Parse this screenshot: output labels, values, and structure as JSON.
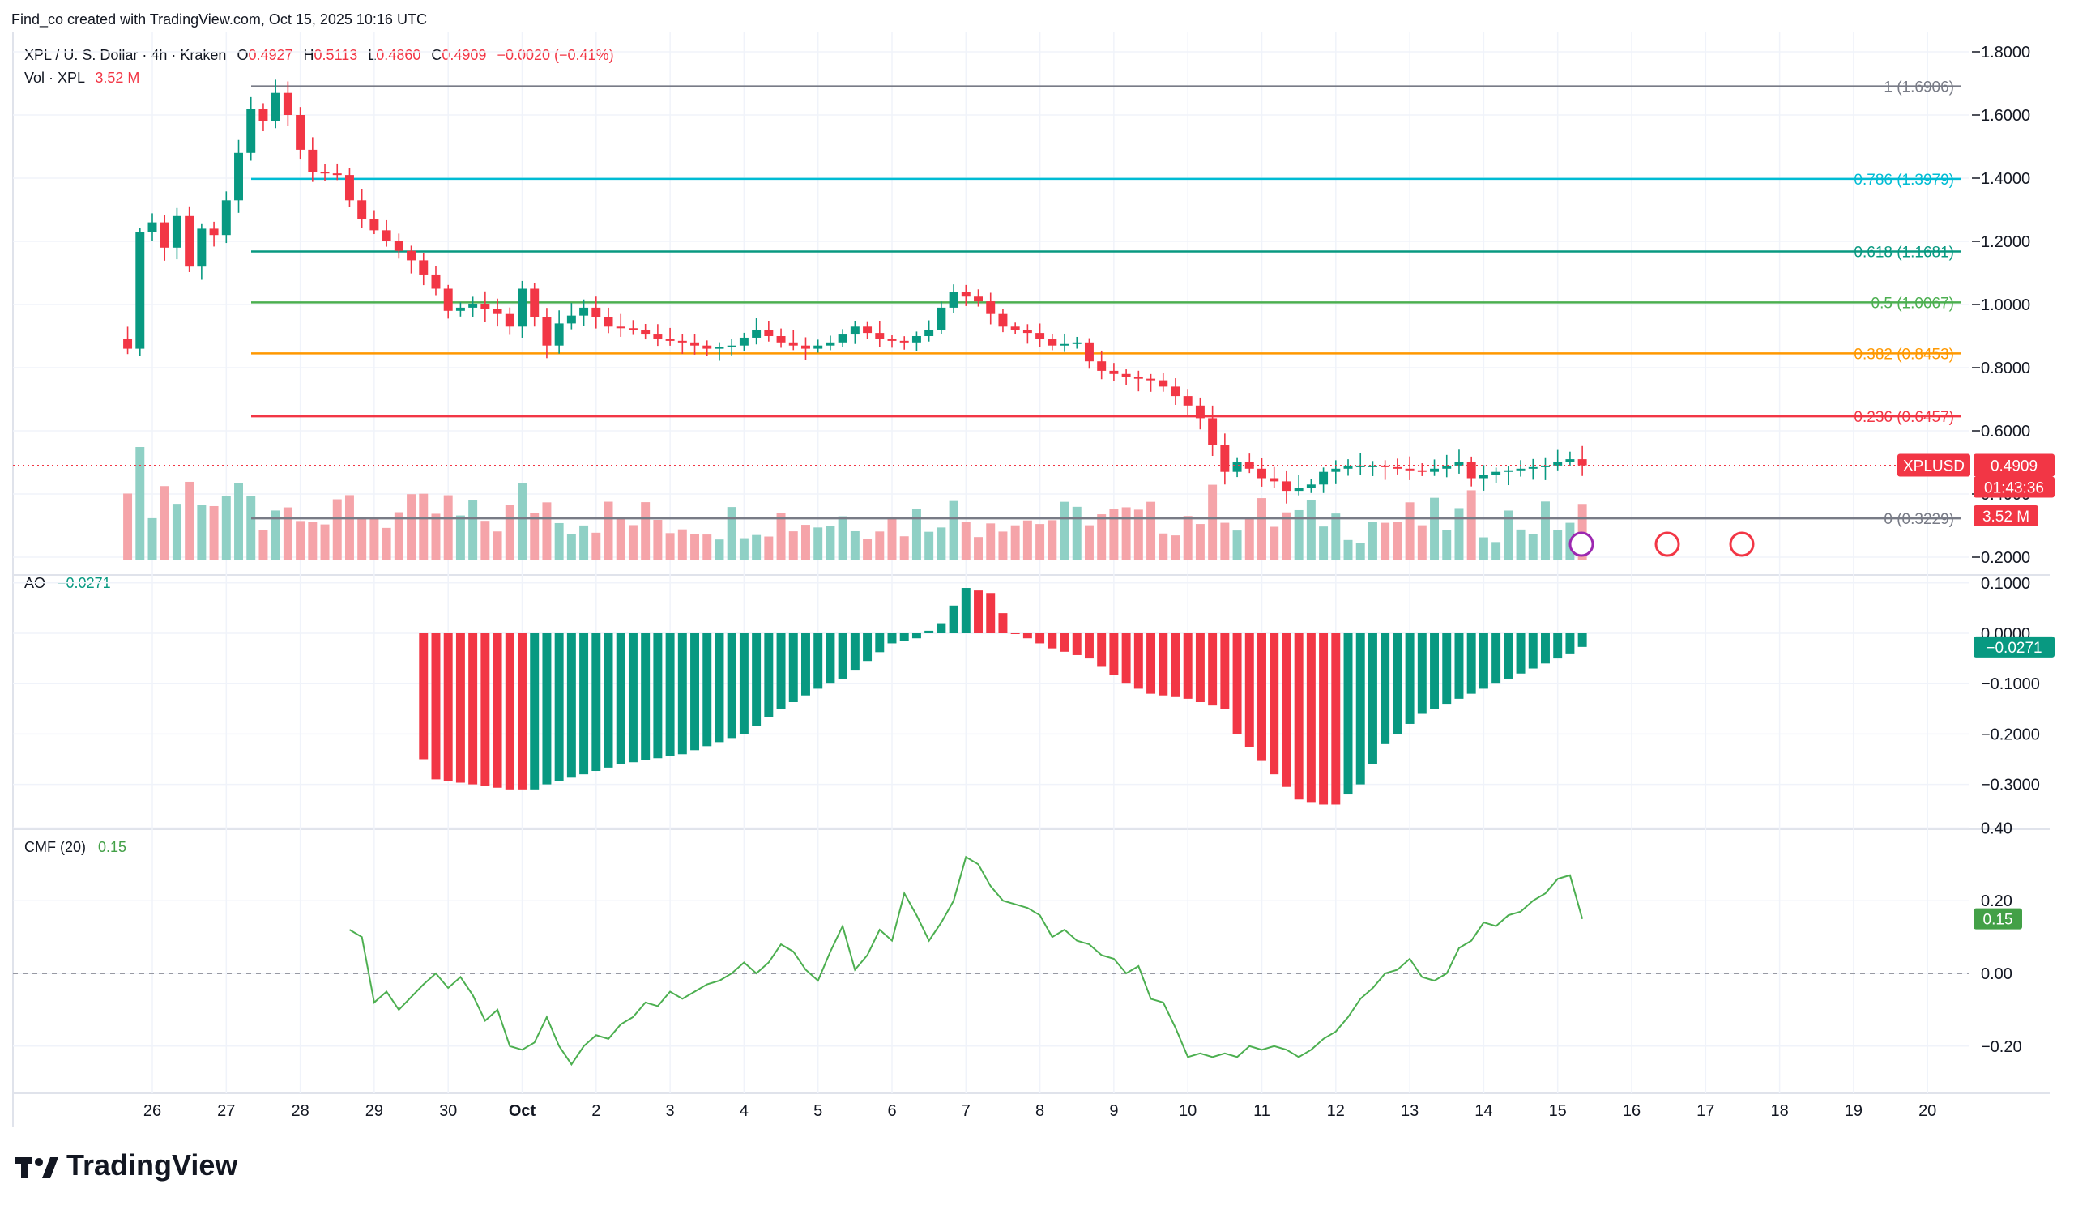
{
  "top_caption": "Find_co created with TradingView.com, Oct 15, 2025 10:16 UTC",
  "brand": "TradingView",
  "legend": {
    "symbol": "XPL / U. S. Dollar · 4h · Kraken",
    "o_label": "O",
    "o": "0.4927",
    "h_label": "H",
    "h": "0.5113",
    "l_label": "L",
    "l": "0.4860",
    "c_label": "C",
    "c": "0.4909",
    "change": "−0.0020 (−0.41%)",
    "vol_label": "Vol · XPL",
    "vol": "3.52 M"
  },
  "ao": {
    "label": "AO",
    "value": "−0.0271"
  },
  "cmf": {
    "label": "CMF (20)",
    "value": "0.15"
  },
  "price_badge": {
    "symbol": "XPLUSD",
    "price": "0.4909",
    "countdown": "01:43:36",
    "volume": "3.52 M"
  },
  "colors": {
    "up": "#089981",
    "down": "#f23645",
    "up_vol": "#8fd0c5",
    "down_vol": "#f5a4a9",
    "cmf_line": "#4caf50",
    "ao_badge": "#089981",
    "cmf_badge": "#43a047"
  },
  "chart_data": [
    {
      "type": "candlestick",
      "title": "XPL / U. S. Dollar · 4h · Kraken",
      "x_tick_labels": [
        "26",
        "27",
        "28",
        "29",
        "30",
        "Oct",
        "2",
        "3",
        "4",
        "5",
        "6",
        "7",
        "8",
        "9",
        "10",
        "11",
        "12",
        "13",
        "14",
        "15",
        "16",
        "17",
        "18",
        "19",
        "20"
      ],
      "y_tick_labels": [
        "1.8000",
        "1.6000",
        "1.4000",
        "1.2000",
        "1.0000",
        "0.8000",
        "0.6000",
        "0.4000",
        "0.2000"
      ],
      "ylim": [
        0.2,
        1.8
      ],
      "fib_levels": [
        {
          "label": "1 (1.6906)",
          "value": 1.6906,
          "color": "#787b86"
        },
        {
          "label": "0.786 (1.3979)",
          "value": 1.3979,
          "color": "#00bcd4"
        },
        {
          "label": "0.618 (1.1681)",
          "value": 1.1681,
          "color": "#089981"
        },
        {
          "label": "0.5 (1.0067)",
          "value": 1.0067,
          "color": "#4caf50"
        },
        {
          "label": "0.382 (0.8453)",
          "value": 0.8453,
          "color": "#ff9800"
        },
        {
          "label": "0.236 (0.6457)",
          "value": 0.6457,
          "color": "#f23645"
        },
        {
          "label": "0 (0.3229)",
          "value": 0.3229,
          "color": "#787b86"
        }
      ],
      "close_anchors": [
        [
          "25-16",
          0.86
        ],
        [
          "25-20",
          1.23
        ],
        [
          "26-0",
          1.26
        ],
        [
          "26-4",
          1.18
        ],
        [
          "26-8",
          1.28
        ],
        [
          "26-12",
          1.12
        ],
        [
          "26-16",
          1.24
        ],
        [
          "26-20",
          1.22
        ],
        [
          "27-0",
          1.33
        ],
        [
          "27-4",
          1.48
        ],
        [
          "27-8",
          1.62
        ],
        [
          "27-12",
          1.58
        ],
        [
          "27-16",
          1.67
        ],
        [
          "27-20",
          1.6
        ],
        [
          "28-0",
          1.49
        ],
        [
          "28-4",
          1.42
        ],
        [
          "28-12",
          1.41
        ],
        [
          "28-16",
          1.33
        ],
        [
          "28-20",
          1.27
        ],
        [
          "29-4",
          1.2
        ],
        [
          "29-12",
          1.14
        ],
        [
          "29-20",
          1.05
        ],
        [
          "30-0",
          0.98
        ],
        [
          "30-8",
          1.0
        ],
        [
          "30-16",
          0.97
        ],
        [
          "30-20",
          0.93
        ],
        [
          "1-0",
          1.05
        ],
        [
          "1-4",
          0.96
        ],
        [
          "1-8",
          0.87
        ],
        [
          "1-12",
          0.94
        ],
        [
          "1-20",
          0.99
        ],
        [
          "2-4",
          0.93
        ],
        [
          "2-12",
          0.92
        ],
        [
          "2-20",
          0.89
        ],
        [
          "3-4",
          0.88
        ],
        [
          "3-12",
          0.86
        ],
        [
          "3-20",
          0.87
        ],
        [
          "4-4",
          0.92
        ],
        [
          "4-12",
          0.88
        ],
        [
          "4-20",
          0.86
        ],
        [
          "5-4",
          0.88
        ],
        [
          "5-12",
          0.93
        ],
        [
          "5-20",
          0.89
        ],
        [
          "6-4",
          0.88
        ],
        [
          "6-12",
          0.92
        ],
        [
          "6-16",
          0.99
        ],
        [
          "6-20",
          1.04
        ],
        [
          "7-4",
          1.01
        ],
        [
          "7-12",
          0.93
        ],
        [
          "7-20",
          0.91
        ],
        [
          "8-4",
          0.87
        ],
        [
          "8-12",
          0.88
        ],
        [
          "8-16",
          0.82
        ],
        [
          "8-20",
          0.79
        ],
        [
          "9-4",
          0.77
        ],
        [
          "9-12",
          0.76
        ],
        [
          "9-16",
          0.74
        ],
        [
          "10-0",
          0.68
        ],
        [
          "10-4",
          0.64
        ],
        [
          "10-12",
          0.47
        ],
        [
          "10-16",
          0.5
        ],
        [
          "10-20",
          0.48
        ],
        [
          "11-0",
          0.45
        ],
        [
          "11-4",
          0.44
        ],
        [
          "11-8",
          0.41
        ],
        [
          "11-16",
          0.43
        ],
        [
          "11-20",
          0.47
        ],
        [
          "12-4",
          0.49
        ],
        [
          "12-12",
          0.49
        ],
        [
          "12-20",
          0.48
        ],
        [
          "13-4",
          0.47
        ],
        [
          "13-12",
          0.49
        ],
        [
          "13-16",
          0.5
        ],
        [
          "13-20",
          0.45
        ],
        [
          "14-4",
          0.47
        ],
        [
          "14-12",
          0.48
        ],
        [
          "14-20",
          0.49
        ],
        [
          "15-0",
          0.5
        ],
        [
          "15-4",
          0.51
        ],
        [
          "15-8",
          0.4909
        ]
      ],
      "volume_label": "Vol · XPL 3.52 M",
      "annotations": [
        "XPLUSD 0.4909",
        "01:43:36",
        "3.52 M"
      ]
    },
    {
      "type": "bar",
      "title": "AO",
      "value": -0.0271,
      "y_tick_labels": [
        "0.1000",
        "0.0000",
        "−0.1000",
        "−0.2000",
        "−0.3000"
      ],
      "ylim": [
        -0.38,
        0.12
      ],
      "anchors": [
        [
          "29-16",
          -0.25
        ],
        [
          "29-20",
          -0.29
        ],
        [
          "30-8",
          -0.3
        ],
        [
          "30-20",
          -0.31
        ],
        [
          "1-4",
          -0.31
        ],
        [
          "1-8",
          -0.3
        ],
        [
          "1-20",
          -0.28
        ],
        [
          "2-8",
          -0.26
        ],
        [
          "3-4",
          -0.24
        ],
        [
          "4-0",
          -0.2
        ],
        [
          "4-12",
          -0.15
        ],
        [
          "5-0",
          -0.11
        ],
        [
          "5-8",
          -0.09
        ],
        [
          "6-0",
          -0.02
        ],
        [
          "6-8",
          -0.01
        ],
        [
          "6-16",
          0.02
        ],
        [
          "7-0",
          0.09
        ],
        [
          "7-8",
          0.08
        ],
        [
          "7-16",
          0.0
        ],
        [
          "8-4",
          -0.03
        ],
        [
          "8-16",
          -0.05
        ],
        [
          "9-4",
          -0.1
        ],
        [
          "9-12",
          -0.12
        ],
        [
          "10-0",
          -0.13
        ],
        [
          "10-12",
          -0.15
        ],
        [
          "10-16",
          -0.2
        ],
        [
          "11-4",
          -0.28
        ],
        [
          "11-12",
          -0.33
        ],
        [
          "11-20",
          -0.34
        ],
        [
          "12-0",
          -0.34
        ],
        [
          "12-8",
          -0.3
        ],
        [
          "12-16",
          -0.22
        ],
        [
          "13-4",
          -0.16
        ],
        [
          "13-16",
          -0.13
        ],
        [
          "14-8",
          -0.09
        ],
        [
          "14-20",
          -0.06
        ],
        [
          "15-4",
          -0.04
        ],
        [
          "15-8",
          -0.0271
        ]
      ]
    },
    {
      "type": "line",
      "title": "CMF (20)",
      "value": 0.15,
      "y_tick_labels": [
        "0.40",
        "0.20",
        "0.00",
        "−0.20"
      ],
      "ylim": [
        -0.33,
        0.4
      ],
      "series": [
        {
          "values": [
            [
              "28-16",
              0.12
            ],
            [
              "28-20",
              0.1
            ],
            [
              "29-0",
              -0.08
            ],
            [
              "29-4",
              -0.05
            ],
            [
              "29-8",
              -0.1
            ],
            [
              "29-16",
              -0.03
            ],
            [
              "29-20",
              0.0
            ],
            [
              "30-0",
              -0.04
            ],
            [
              "30-4",
              -0.01
            ],
            [
              "30-8",
              -0.06
            ],
            [
              "30-12",
              -0.13
            ],
            [
              "30-16",
              -0.1
            ],
            [
              "30-20",
              -0.2
            ],
            [
              "1-0",
              -0.21
            ],
            [
              "1-4",
              -0.19
            ],
            [
              "1-8",
              -0.12
            ],
            [
              "1-12",
              -0.2
            ],
            [
              "1-16",
              -0.25
            ],
            [
              "1-20",
              -0.2
            ],
            [
              "2-0",
              -0.17
            ],
            [
              "2-4",
              -0.18
            ],
            [
              "2-8",
              -0.14
            ],
            [
              "2-12",
              -0.12
            ],
            [
              "2-16",
              -0.08
            ],
            [
              "2-20",
              -0.09
            ],
            [
              "3-0",
              -0.05
            ],
            [
              "3-4",
              -0.07
            ],
            [
              "3-8",
              -0.05
            ],
            [
              "3-12",
              -0.03
            ],
            [
              "3-16",
              -0.02
            ],
            [
              "3-20",
              0.0
            ],
            [
              "4-0",
              0.03
            ],
            [
              "4-4",
              0.0
            ],
            [
              "4-8",
              0.03
            ],
            [
              "4-12",
              0.08
            ],
            [
              "4-16",
              0.06
            ],
            [
              "4-20",
              0.01
            ],
            [
              "5-0",
              -0.02
            ],
            [
              "5-4",
              0.06
            ],
            [
              "5-8",
              0.13
            ],
            [
              "5-12",
              0.01
            ],
            [
              "5-16",
              0.05
            ],
            [
              "5-20",
              0.12
            ],
            [
              "6-0",
              0.09
            ],
            [
              "6-4",
              0.22
            ],
            [
              "6-8",
              0.16
            ],
            [
              "6-12",
              0.09
            ],
            [
              "6-16",
              0.14
            ],
            [
              "6-20",
              0.2
            ],
            [
              "7-0",
              0.32
            ],
            [
              "7-4",
              0.3
            ],
            [
              "7-8",
              0.24
            ],
            [
              "7-12",
              0.2
            ],
            [
              "7-16",
              0.19
            ],
            [
              "7-20",
              0.18
            ],
            [
              "8-0",
              0.16
            ],
            [
              "8-4",
              0.1
            ],
            [
              "8-8",
              0.12
            ],
            [
              "8-12",
              0.09
            ],
            [
              "8-16",
              0.08
            ],
            [
              "8-20",
              0.05
            ],
            [
              "9-0",
              0.04
            ],
            [
              "9-4",
              0.0
            ],
            [
              "9-8",
              0.02
            ],
            [
              "9-12",
              -0.07
            ],
            [
              "9-16",
              -0.08
            ],
            [
              "9-20",
              -0.15
            ],
            [
              "10-0",
              -0.23
            ],
            [
              "10-4",
              -0.22
            ],
            [
              "10-8",
              -0.23
            ],
            [
              "10-12",
              -0.22
            ],
            [
              "10-16",
              -0.23
            ],
            [
              "10-20",
              -0.2
            ],
            [
              "11-0",
              -0.21
            ],
            [
              "11-4",
              -0.2
            ],
            [
              "11-8",
              -0.21
            ],
            [
              "11-12",
              -0.23
            ],
            [
              "11-16",
              -0.21
            ],
            [
              "11-20",
              -0.18
            ],
            [
              "12-0",
              -0.16
            ],
            [
              "12-4",
              -0.12
            ],
            [
              "12-8",
              -0.07
            ],
            [
              "12-12",
              -0.04
            ],
            [
              "12-16",
              0.0
            ],
            [
              "12-20",
              0.01
            ],
            [
              "13-0",
              0.04
            ],
            [
              "13-4",
              -0.01
            ],
            [
              "13-8",
              -0.02
            ],
            [
              "13-12",
              0.0
            ],
            [
              "13-16",
              0.07
            ],
            [
              "13-20",
              0.09
            ],
            [
              "14-0",
              0.14
            ],
            [
              "14-4",
              0.13
            ],
            [
              "14-8",
              0.16
            ],
            [
              "14-12",
              0.17
            ],
            [
              "14-16",
              0.2
            ],
            [
              "14-20",
              0.22
            ],
            [
              "15-0",
              0.26
            ],
            [
              "15-4",
              0.27
            ],
            [
              "15-8",
              0.15
            ]
          ]
        }
      ]
    }
  ]
}
